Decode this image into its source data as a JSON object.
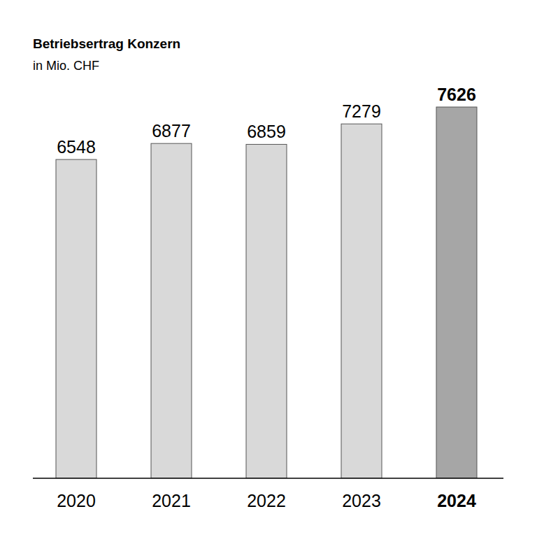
{
  "chart_data": {
    "type": "bar",
    "title": "Betriebsertrag Konzern",
    "subtitle": "in Mio. CHF",
    "categories": [
      "2020",
      "2021",
      "2022",
      "2023",
      "2024"
    ],
    "values": [
      6548,
      6877,
      6859,
      7279,
      7626
    ],
    "colors": [
      "#d9d9d9",
      "#d9d9d9",
      "#d9d9d9",
      "#d9d9d9",
      "#a6a6a6"
    ],
    "ylim": [
      0,
      8000
    ],
    "yticks": [],
    "grid": false,
    "data_labels": true,
    "tick_labels": "x"
  }
}
